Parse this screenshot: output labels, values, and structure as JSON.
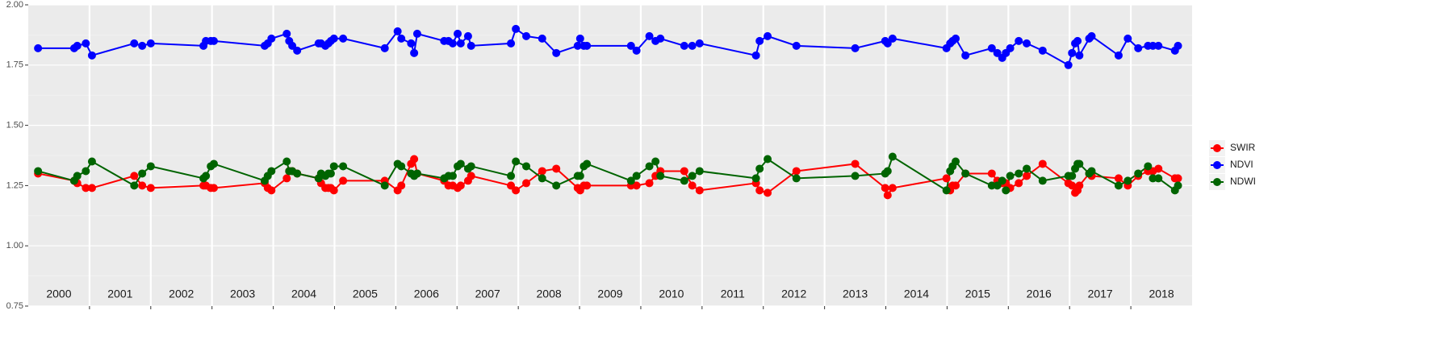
{
  "chart_data": {
    "type": "line",
    "x": [
      2000.16,
      2000.75,
      2000.8,
      2000.94,
      2001.04,
      2001.73,
      2001.86,
      2002.0,
      2002.86,
      2002.9,
      2002.98,
      2003.03,
      2003.86,
      2003.91,
      2003.97,
      2004.22,
      2004.26,
      2004.31,
      2004.39,
      2004.74,
      2004.78,
      2004.85,
      2004.9,
      2004.94,
      2004.99,
      2005.14,
      2005.82,
      2006.03,
      2006.09,
      2006.25,
      2006.3,
      2006.35,
      2006.79,
      2006.86,
      2006.93,
      2007.01,
      2007.06,
      2007.18,
      2007.23,
      2007.88,
      2007.96,
      2008.13,
      2008.39,
      2008.62,
      2008.97,
      2009.01,
      2009.07,
      2009.12,
      2009.84,
      2009.93,
      2010.14,
      2010.24,
      2010.32,
      2010.71,
      2010.84,
      2010.96,
      2011.88,
      2011.94,
      2012.07,
      2012.54,
      2013.5,
      2013.99,
      2014.03,
      2014.11,
      2014.99,
      2015.05,
      2015.09,
      2015.14,
      2015.3,
      2015.73,
      2015.82,
      2015.9,
      2015.96,
      2016.03,
      2016.17,
      2016.3,
      2016.56,
      2016.98,
      2017.04,
      2017.09,
      2017.13,
      2017.16,
      2017.32,
      2017.36,
      2017.8,
      2017.95,
      2018.12,
      2018.28,
      2018.36,
      2018.45,
      2018.72,
      2018.77
    ],
    "series": [
      {
        "name": "SWIR",
        "color": "#ff0000",
        "values": [
          1.3,
          1.27,
          1.26,
          1.24,
          1.24,
          1.29,
          1.25,
          1.24,
          1.25,
          1.25,
          1.24,
          1.24,
          1.26,
          1.24,
          1.23,
          1.28,
          1.31,
          1.31,
          1.3,
          1.28,
          1.26,
          1.24,
          1.24,
          1.24,
          1.23,
          1.27,
          1.27,
          1.23,
          1.25,
          1.34,
          1.36,
          1.3,
          1.27,
          1.25,
          1.25,
          1.24,
          1.25,
          1.27,
          1.29,
          1.25,
          1.23,
          1.26,
          1.31,
          1.32,
          1.24,
          1.23,
          1.25,
          1.25,
          1.25,
          1.25,
          1.26,
          1.29,
          1.31,
          1.31,
          1.25,
          1.23,
          1.26,
          1.23,
          1.22,
          1.31,
          1.34,
          1.24,
          1.21,
          1.24,
          1.28,
          1.23,
          1.25,
          1.25,
          1.3,
          1.3,
          1.27,
          1.26,
          1.26,
          1.24,
          1.26,
          1.29,
          1.34,
          1.26,
          1.25,
          1.22,
          1.23,
          1.25,
          1.3,
          1.29,
          1.28,
          1.25,
          1.29,
          1.31,
          1.31,
          1.32,
          1.28,
          1.28
        ]
      },
      {
        "name": "NDVI",
        "color": "#0000ff",
        "values": [
          1.82,
          1.82,
          1.83,
          1.84,
          1.79,
          1.84,
          1.83,
          1.84,
          1.83,
          1.85,
          1.85,
          1.85,
          1.83,
          1.84,
          1.86,
          1.88,
          1.85,
          1.83,
          1.81,
          1.84,
          1.84,
          1.83,
          1.84,
          1.85,
          1.86,
          1.86,
          1.82,
          1.89,
          1.86,
          1.84,
          1.8,
          1.88,
          1.85,
          1.85,
          1.84,
          1.88,
          1.84,
          1.87,
          1.83,
          1.84,
          1.9,
          1.87,
          1.86,
          1.8,
          1.83,
          1.86,
          1.83,
          1.83,
          1.83,
          1.81,
          1.87,
          1.85,
          1.86,
          1.83,
          1.83,
          1.84,
          1.79,
          1.85,
          1.87,
          1.83,
          1.82,
          1.85,
          1.84,
          1.86,
          1.82,
          1.84,
          1.85,
          1.86,
          1.79,
          1.82,
          1.8,
          1.78,
          1.8,
          1.82,
          1.85,
          1.84,
          1.81,
          1.75,
          1.8,
          1.84,
          1.85,
          1.79,
          1.86,
          1.87,
          1.79,
          1.86,
          1.82,
          1.83,
          1.83,
          1.83,
          1.81,
          1.83
        ]
      },
      {
        "name": "NDWI",
        "color": "#006400",
        "values": [
          1.31,
          1.27,
          1.29,
          1.31,
          1.35,
          1.25,
          1.3,
          1.33,
          1.28,
          1.29,
          1.33,
          1.34,
          1.27,
          1.29,
          1.31,
          1.35,
          1.31,
          1.31,
          1.3,
          1.28,
          1.3,
          1.29,
          1.3,
          1.3,
          1.33,
          1.33,
          1.25,
          1.34,
          1.33,
          1.3,
          1.29,
          1.3,
          1.28,
          1.29,
          1.29,
          1.33,
          1.34,
          1.32,
          1.33,
          1.29,
          1.35,
          1.33,
          1.28,
          1.25,
          1.29,
          1.29,
          1.33,
          1.34,
          1.27,
          1.29,
          1.33,
          1.35,
          1.29,
          1.27,
          1.29,
          1.31,
          1.28,
          1.32,
          1.36,
          1.28,
          1.29,
          1.3,
          1.31,
          1.37,
          1.23,
          1.31,
          1.33,
          1.35,
          1.3,
          1.25,
          1.25,
          1.27,
          1.23,
          1.29,
          1.3,
          1.32,
          1.27,
          1.29,
          1.29,
          1.32,
          1.34,
          1.34,
          1.3,
          1.31,
          1.25,
          1.27,
          1.3,
          1.33,
          1.28,
          1.28,
          1.23,
          1.25
        ]
      }
    ],
    "year_labels": [
      "2000",
      "2001",
      "2002",
      "2003",
      "2004",
      "2005",
      "2006",
      "2007",
      "2008",
      "2009",
      "2010",
      "2011",
      "2012",
      "2013",
      "2014",
      "2015",
      "2016",
      "2017",
      "2018"
    ],
    "xlim": [
      2000,
      2019
    ],
    "xticks": [
      2001,
      2002,
      2003,
      2004,
      2005,
      2006,
      2007,
      2008,
      2009,
      2010,
      2011,
      2012,
      2013,
      2014,
      2015,
      2016,
      2017,
      2018
    ],
    "ylim": [
      0.75,
      2
    ],
    "yticks": [
      0.75,
      {
        "value": 1,
        "label": "1.00"
      },
      1.25,
      {
        "value": 1.5,
        "label": "1.50"
      },
      1.75,
      {
        "value": 2,
        "label": "2.00"
      }
    ],
    "grid": true,
    "legend": "right"
  }
}
